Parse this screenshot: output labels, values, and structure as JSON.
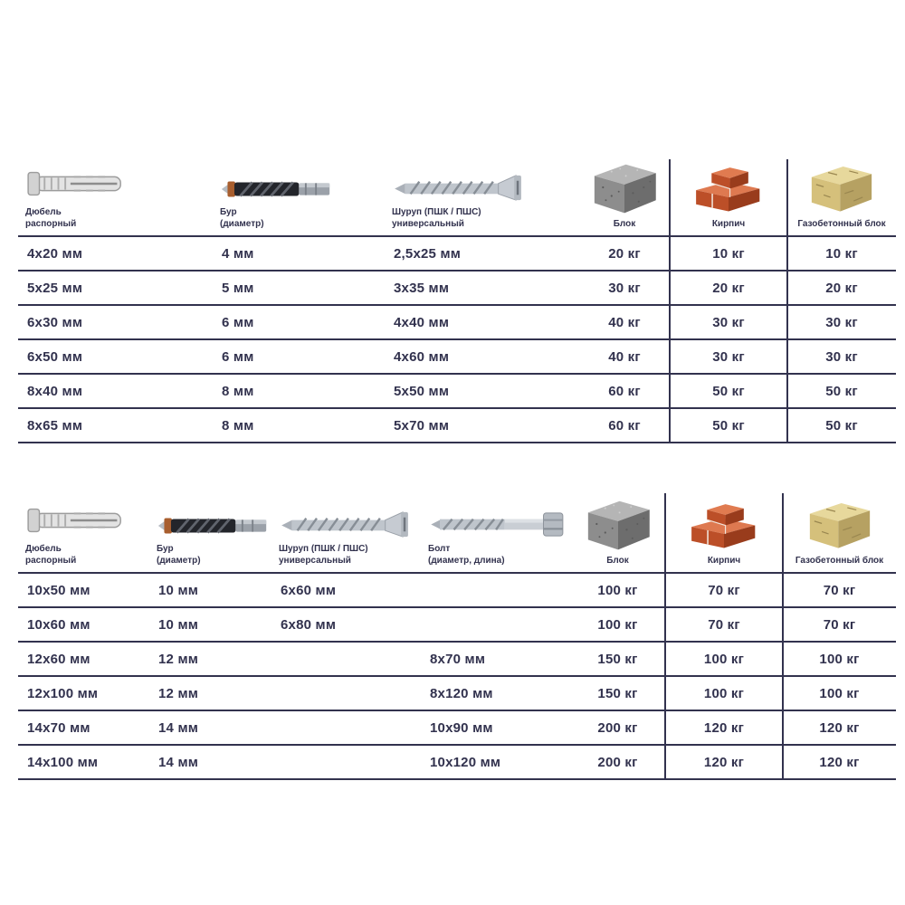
{
  "colors": {
    "text": "#32324e",
    "grid": "#32324e",
    "brick": "#bc4f28",
    "concrete": "#8d8d8d",
    "aerated_block": "#d5c07b"
  },
  "chart_data": [
    {
      "type": "table",
      "columns": [
        {
          "id": "dowel",
          "icon": "dowel-icon",
          "label_lines": [
            "Дюбель",
            "распорный"
          ]
        },
        {
          "id": "drill",
          "icon": "drill-icon",
          "label_lines": [
            "Бур",
            "(диаметр)"
          ]
        },
        {
          "id": "screw",
          "icon": "screw-icon",
          "label_lines": [
            "Шуруп (ПШК / ПШС)",
            "универсальный"
          ]
        },
        {
          "id": "block",
          "icon": "concrete-block-icon",
          "label_lines": [
            "Блок"
          ]
        },
        {
          "id": "brick",
          "icon": "brick-icon",
          "label_lines": [
            "Кирпич"
          ]
        },
        {
          "id": "gasblock",
          "icon": "aerated-block-icon",
          "label_lines": [
            "Газобетонный блок"
          ]
        }
      ],
      "rows": [
        [
          "4x20 мм",
          "4 мм",
          "2,5x25 мм",
          "20 кг",
          "10 кг",
          "10 кг"
        ],
        [
          "5x25 мм",
          "5 мм",
          "3x35 мм",
          "30 кг",
          "20 кг",
          "20 кг"
        ],
        [
          "6x30 мм",
          "6 мм",
          "4x40 мм",
          "40 кг",
          "30 кг",
          "30 кг"
        ],
        [
          "6x50 мм",
          "6 мм",
          "4x60 мм",
          "40 кг",
          "30 кг",
          "30 кг"
        ],
        [
          "8x40 мм",
          "8 мм",
          "5x50 мм",
          "60 кг",
          "50 кг",
          "50 кг"
        ],
        [
          "8x65 мм",
          "8 мм",
          "5x70 мм",
          "60 кг",
          "50 кг",
          "50 кг"
        ]
      ]
    },
    {
      "type": "table",
      "columns": [
        {
          "id": "dowel",
          "icon": "dowel-icon",
          "label_lines": [
            "Дюбель",
            "распорный"
          ]
        },
        {
          "id": "drill",
          "icon": "drill-icon",
          "label_lines": [
            "Бур",
            "(диаметр)"
          ]
        },
        {
          "id": "screw",
          "icon": "screw-icon",
          "label_lines": [
            "Шуруп (ПШК / ПШС)",
            "универсальный"
          ]
        },
        {
          "id": "bolt",
          "icon": "lag-bolt-icon",
          "label_lines": [
            "Болт",
            "(диаметр, длина)"
          ]
        },
        {
          "id": "block",
          "icon": "concrete-block-icon",
          "label_lines": [
            "Блок"
          ]
        },
        {
          "id": "brick",
          "icon": "brick-icon",
          "label_lines": [
            "Кирпич"
          ]
        },
        {
          "id": "gasblock",
          "icon": "aerated-block-icon",
          "label_lines": [
            "Газобетонный блок"
          ]
        }
      ],
      "rows": [
        [
          "10x50 мм",
          "10 мм",
          "6x60 мм",
          "",
          "100 кг",
          "70 кг",
          "70 кг"
        ],
        [
          "10x60 мм",
          "10 мм",
          "6x80 мм",
          "",
          "100 кг",
          "70 кг",
          "70 кг"
        ],
        [
          "12x60 мм",
          "12 мм",
          "",
          "8x70 мм",
          "150 кг",
          "100 кг",
          "100 кг"
        ],
        [
          "12x100 мм",
          "12 мм",
          "",
          "8x120 мм",
          "150 кг",
          "100 кг",
          "100 кг"
        ],
        [
          "14x70 мм",
          "14 мм",
          "",
          "10x90 мм",
          "200 кг",
          "120 кг",
          "120 кг"
        ],
        [
          "14x100 мм",
          "14 мм",
          "",
          "10x120 мм",
          "200 кг",
          "120 кг",
          "120 кг"
        ]
      ]
    }
  ]
}
